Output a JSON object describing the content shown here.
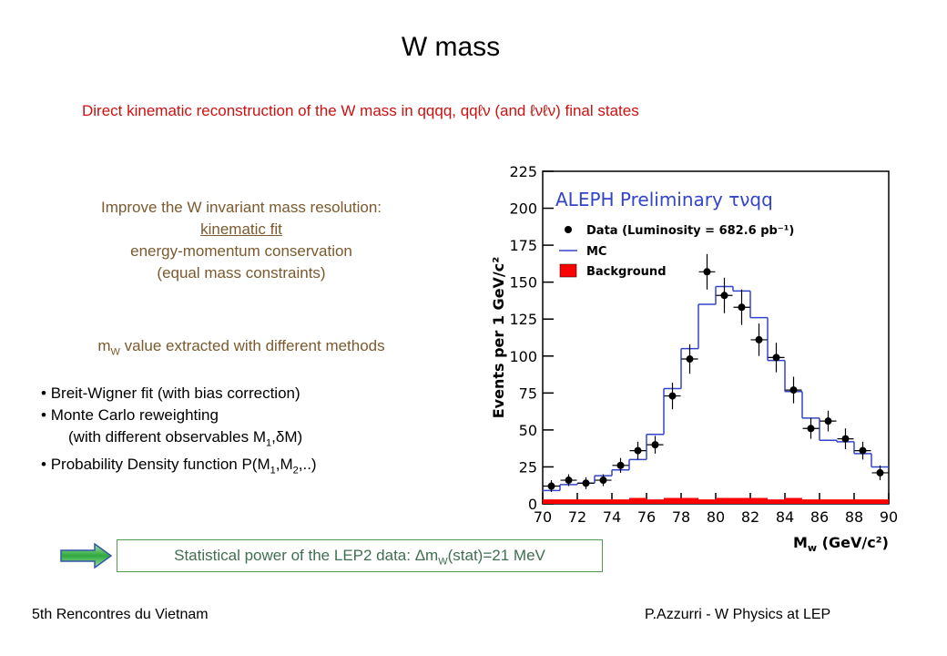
{
  "title": "W mass",
  "subtitle": "Direct kinematic reconstruction of the W mass in qqqq, qqℓν (and ℓνℓν) final states",
  "improve": {
    "heading": "Improve the W invariant mass resolution:",
    "link": "kinematic fit",
    "lines": [
      "energy-momentum conservation",
      "(equal mass constraints)"
    ]
  },
  "methods": {
    "heading": [
      "m",
      "W",
      " value extracted with different methods"
    ],
    "bullets": [
      [
        "Breit-Wigner fit (with bias correction)"
      ],
      [
        "Monte Carlo reweighting"
      ],
      [
        "(with different observables M",
        "1",
        ",δM)"
      ],
      [
        "Probability Density function P(M",
        "1",
        ",M",
        "2",
        ",..)"
      ]
    ]
  },
  "box": [
    "Statistical power of the LEP2 data: Δm",
    "W",
    "(stat)=21 MeV"
  ],
  "footer": {
    "left": "5th Rencontres du Vietnam",
    "right": "P.Azzurri - W Physics at LEP"
  },
  "chart_data": {
    "type": "histogram",
    "title": "ALEPH Preliminary τνqq",
    "ylabel": "Events per 1 GeV/c²",
    "xlabel": [
      "M",
      "w",
      " (GeV/c²)"
    ],
    "bins": [
      70,
      71,
      72,
      73,
      74,
      75,
      76,
      77,
      78,
      79,
      80,
      81,
      82,
      83,
      84,
      85,
      86,
      87,
      88,
      89,
      90
    ],
    "series": [
      {
        "name": "Data (Luminosity =  682.6 pb⁻¹)",
        "color": "#000000",
        "values": [
          12,
          16,
          14,
          16,
          26,
          36,
          40,
          73,
          98,
          157,
          141,
          133,
          111,
          99,
          77,
          51,
          56,
          44,
          36,
          21
        ],
        "errors": [
          4,
          4,
          4,
          4,
          5,
          6,
          6,
          9,
          10,
          12,
          12,
          12,
          11,
          10,
          9,
          7,
          7,
          7,
          6,
          5
        ]
      },
      {
        "name": "MC",
        "color": "#3344cc",
        "values": [
          9,
          13,
          14,
          19,
          23,
          30,
          47,
          78,
          105,
          135,
          147,
          144,
          126,
          97,
          76,
          58,
          43,
          42,
          34,
          25
        ]
      },
      {
        "name": "Background",
        "color": "#ff0000",
        "values": [
          3,
          3,
          3,
          3,
          3,
          4,
          3,
          4,
          4,
          3,
          4,
          4,
          4,
          3,
          4,
          3,
          3,
          3,
          3,
          3
        ]
      }
    ],
    "xlim": [
      70,
      90
    ],
    "xticks": [
      70,
      72,
      74,
      76,
      78,
      80,
      82,
      84,
      86,
      88,
      90
    ],
    "ylim": [
      0,
      225
    ],
    "yticks": [
      0,
      25,
      50,
      75,
      100,
      125,
      150,
      175,
      200,
      225
    ]
  }
}
